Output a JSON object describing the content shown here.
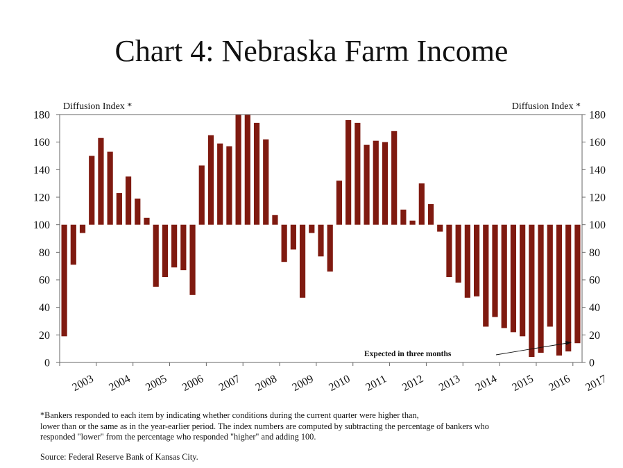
{
  "title": "Chart 4: Nebraska Farm Income",
  "footnote_lines": [
    "*Bankers responded to each item by indicating whether conditions during the current quarter were higher than,",
    "lower than or the same as in the year-earlier period.  The index numbers are computed by subtracting the percentage of  bankers who",
    "responded \"lower\" from the percentage who responded \"higher\" and adding 100."
  ],
  "source": "Source: Federal Reserve Bank of Kansas City.",
  "chart_data": {
    "type": "bar",
    "ylabel_left": "Diffusion Index *",
    "ylabel_right": "Diffusion Index *",
    "ylim": [
      0,
      180
    ],
    "baseline": 100,
    "yticks": [
      0,
      20,
      40,
      60,
      80,
      100,
      120,
      140,
      160,
      180
    ],
    "xtick_labels": [
      "2003",
      "2004",
      "2005",
      "2006",
      "2007",
      "2008",
      "2009",
      "2010",
      "2011",
      "2012",
      "2013",
      "2014",
      "2015",
      "2016",
      "2017"
    ],
    "bar_color": "#7f1a10",
    "grid": false,
    "annotation": "Expected in three months",
    "series": [
      {
        "values": [
          19,
          71,
          94,
          150,
          163,
          153,
          123,
          135,
          119,
          105,
          55,
          62,
          69,
          67,
          49,
          143,
          165,
          159,
          157,
          181,
          181,
          174,
          162,
          107,
          73,
          82,
          47,
          94,
          77,
          66,
          132,
          176,
          174,
          158,
          161,
          160,
          168,
          111,
          103,
          130,
          115,
          95,
          62,
          58,
          47,
          48,
          26,
          33,
          25,
          22,
          19,
          4,
          7,
          26,
          5,
          8,
          14
        ]
      }
    ]
  }
}
